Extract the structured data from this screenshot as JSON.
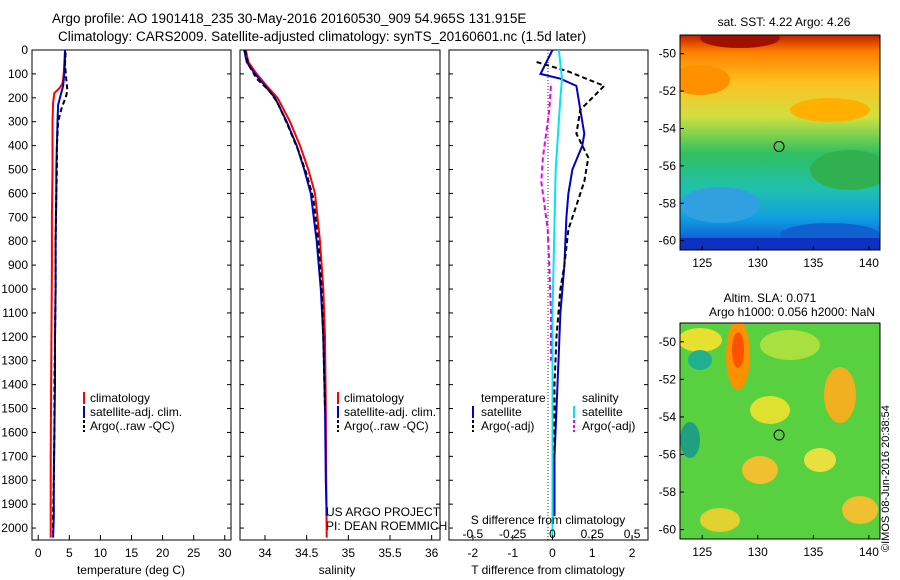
{
  "header": {
    "line1": "Argo profile: AO 1901418_235 30-May-2016 20160530_909 54.965S 131.915E",
    "line2": "Climatology: CARS2009. Satellite-adjusted climatology: synTS_20160601.nc (1.5d later)"
  },
  "stamp": "©IMOS 08-Jun-2016 20:38:54",
  "colors": {
    "red": "#ff0000",
    "blue": "#0000cc",
    "black": "#000000",
    "cyan": "#00e5ee",
    "magenta": "#ee00ee"
  },
  "chart_data": [
    {
      "type": "line",
      "id": "temperature",
      "xlabel": "temperature (deg C)",
      "ylabel": "",
      "xlim": [
        -1,
        31
      ],
      "ylim": [
        2050,
        0
      ],
      "xticks": [
        "0",
        "5",
        "10",
        "15",
        "20",
        "25",
        "30"
      ],
      "yticks": [
        "0",
        "100",
        "200",
        "300",
        "400",
        "500",
        "600",
        "700",
        "800",
        "900",
        "1000",
        "1100",
        "1200",
        "1300",
        "1400",
        "1500",
        "1600",
        "1700",
        "1800",
        "1900",
        "2000"
      ],
      "legend": [
        "climatology",
        "satellite-adj. clim.",
        "Argo(..raw -QC)"
      ],
      "series": [
        {
          "name": "climatology",
          "color": "red",
          "dash": false,
          "x": [
            4.3,
            4.2,
            4.1,
            3.9,
            3.4,
            2.6,
            2.4,
            2.3,
            2.3,
            2.3,
            2.2,
            2.2,
            2.15,
            2.1,
            2.05,
            2.0,
            2.0,
            2.0
          ],
          "y": [
            0,
            50,
            100,
            140,
            160,
            180,
            220,
            300,
            400,
            500,
            700,
            900,
            1100,
            1300,
            1500,
            1700,
            1900,
            2040
          ]
        },
        {
          "name": "satellite-adj. clim.",
          "color": "blue",
          "dash": false,
          "x": [
            4.3,
            4.3,
            4.2,
            4.0,
            3.6,
            3.2,
            3.1,
            3.0,
            2.9,
            2.9,
            2.8,
            2.8,
            2.7,
            2.7,
            2.6,
            2.5,
            2.5,
            2.4
          ],
          "y": [
            0,
            50,
            100,
            150,
            190,
            230,
            300,
            400,
            500,
            600,
            800,
            1000,
            1200,
            1400,
            1600,
            1800,
            1950,
            2040
          ]
        },
        {
          "name": "Argo(..raw -QC)",
          "color": "black",
          "dash": true,
          "x": [
            4.4,
            4.3,
            4.5,
            4.7,
            4.4,
            3.8,
            3.2,
            3.0,
            3.0,
            2.9,
            2.8,
            2.8,
            2.7,
            2.6,
            2.6,
            2.5,
            2.4,
            2.4
          ],
          "y": [
            10,
            60,
            120,
            170,
            200,
            240,
            300,
            400,
            500,
            600,
            800,
            1000,
            1200,
            1400,
            1600,
            1800,
            1950,
            2020
          ]
        }
      ]
    },
    {
      "type": "line",
      "id": "salinity",
      "xlabel": "salinity",
      "ylabel": "",
      "xlim": [
        33.7,
        36.1
      ],
      "ylim": [
        2050,
        0
      ],
      "xticks": [
        "34",
        "34.5",
        "35",
        "35.5",
        "36"
      ],
      "legend": [
        "climatology",
        "satellite-adj. clim.",
        "Argo(..raw -QC)"
      ],
      "annotations": [
        "US ARGO PROJECT",
        "PI: DEAN ROEMMICH"
      ],
      "series": [
        {
          "name": "climatology",
          "color": "red",
          "dash": false,
          "x": [
            33.77,
            33.8,
            33.9,
            34.02,
            34.15,
            34.3,
            34.42,
            34.52,
            34.6,
            34.66,
            34.7,
            34.72,
            34.73,
            34.735,
            34.74
          ],
          "y": [
            0,
            50,
            100,
            150,
            200,
            300,
            400,
            500,
            600,
            800,
            1000,
            1200,
            1500,
            1800,
            2040
          ]
        },
        {
          "name": "satellite-adj. clim.",
          "color": "blue",
          "dash": false,
          "x": [
            33.75,
            33.78,
            33.88,
            34.0,
            34.12,
            34.26,
            34.38,
            34.47,
            34.55,
            34.62,
            34.67,
            34.7,
            34.72,
            34.73,
            34.74
          ],
          "y": [
            0,
            50,
            100,
            150,
            200,
            300,
            400,
            500,
            600,
            800,
            1000,
            1200,
            1500,
            1800,
            1950
          ]
        },
        {
          "name": "Argo(..raw -QC)",
          "color": "black",
          "dash": true,
          "x": [
            33.76,
            33.8,
            33.9,
            34.05,
            34.15,
            34.28,
            34.4,
            34.5,
            34.58,
            34.64,
            34.68,
            34.7,
            34.72
          ],
          "y": [
            0,
            60,
            120,
            170,
            220,
            320,
            420,
            520,
            620,
            800,
            1000,
            1200,
            1500
          ]
        }
      ]
    },
    {
      "type": "line",
      "id": "difference",
      "xlabel": "T difference from climatology",
      "x2label": "S difference from climatology",
      "ylabel": "",
      "xlim": [
        -2.6,
        2.4
      ],
      "ylim": [
        2050,
        0
      ],
      "xticks": [
        "-2",
        "-1",
        "0",
        "1",
        "2"
      ],
      "x2ticks": [
        "-0.5",
        "-0.25",
        "0",
        "0.25",
        "0.5"
      ],
      "legend_headers": [
        "temperature",
        "salinity"
      ],
      "legend": [
        "satellite",
        "Argo(-adj)",
        "satellite",
        "Argo(-adj)"
      ],
      "series": [
        {
          "name": "satellite",
          "group": "temperature",
          "color": "blue",
          "dash": false,
          "x": [
            0.0,
            -0.3,
            0.2,
            0.6,
            0.7,
            0.8,
            0.75,
            0.5,
            0.4,
            0.35,
            0.3,
            0.2,
            0.15,
            0.1,
            0.05,
            0.05
          ],
          "y": [
            0,
            100,
            120,
            150,
            250,
            350,
            400,
            500,
            600,
            700,
            900,
            1100,
            1300,
            1500,
            1700,
            1950
          ]
        },
        {
          "name": "Argo(-adj)",
          "group": "temperature",
          "color": "black",
          "dash": true,
          "x": [
            -0.4,
            0.4,
            1.3,
            0.7,
            0.6,
            0.9,
            0.8,
            0.6,
            0.4,
            0.3,
            0.2,
            0.1,
            0.05,
            0.05,
            0.0
          ],
          "y": [
            50,
            90,
            150,
            250,
            350,
            450,
            550,
            650,
            750,
            900,
            1000,
            1200,
            1400,
            1600,
            1800
          ]
        },
        {
          "name": "satellite",
          "group": "salinity",
          "color": "cyan",
          "dash": false,
          "x": [
            0.04,
            0.05,
            0.06,
            0.05,
            0.04,
            0.02,
            0.01,
            0.0,
            0.0,
            0.0,
            0.0,
            0.0
          ],
          "y": [
            0,
            60,
            120,
            200,
            300,
            500,
            800,
            1100,
            1400,
            1700,
            1900,
            2040
          ]
        },
        {
          "name": "Argo(-adj)",
          "group": "salinity",
          "color": "magenta",
          "dash": true,
          "x": [
            -0.01,
            -0.02,
            -0.04,
            -0.06,
            -0.07,
            -0.05,
            -0.03,
            -0.02,
            -0.01,
            -0.01
          ],
          "y": [
            150,
            250,
            350,
            450,
            550,
            650,
            750,
            900,
            1100,
            1300
          ]
        }
      ]
    },
    {
      "type": "heatmap",
      "id": "sst-map",
      "title": "sat. SST: 4.22 Argo: 4.26",
      "xlim": [
        123,
        141
      ],
      "ylim": [
        -60.5,
        -49
      ],
      "xticks": [
        "125",
        "130",
        "135",
        "140"
      ],
      "yticks": [
        "-50",
        "-52",
        "-54",
        "-56",
        "-58",
        "-60"
      ],
      "marker": {
        "x": 131.915,
        "y": -54.965
      }
    },
    {
      "type": "heatmap",
      "id": "sla-map",
      "title": "Altim. SLA: 0.071",
      "subtitle": "Argo h1000: 0.056 h2000: NaN",
      "xlim": [
        123,
        141
      ],
      "ylim": [
        -60.5,
        -49
      ],
      "xticks": [
        "125",
        "130",
        "135",
        "140"
      ],
      "yticks": [
        "-50",
        "-52",
        "-54",
        "-56",
        "-58",
        "-60"
      ],
      "marker": {
        "x": 131.915,
        "y": -54.965
      }
    }
  ]
}
